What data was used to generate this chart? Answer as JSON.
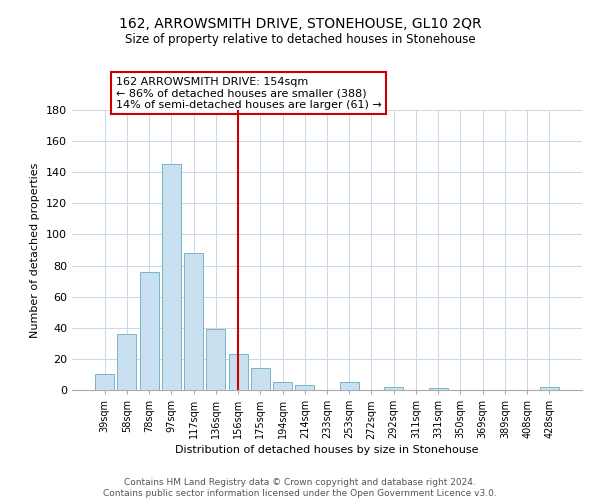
{
  "title": "162, ARROWSMITH DRIVE, STONEHOUSE, GL10 2QR",
  "subtitle": "Size of property relative to detached houses in Stonehouse",
  "xlabel": "Distribution of detached houses by size in Stonehouse",
  "ylabel": "Number of detached properties",
  "bar_labels": [
    "39sqm",
    "58sqm",
    "78sqm",
    "97sqm",
    "117sqm",
    "136sqm",
    "156sqm",
    "175sqm",
    "194sqm",
    "214sqm",
    "233sqm",
    "253sqm",
    "272sqm",
    "292sqm",
    "311sqm",
    "331sqm",
    "350sqm",
    "369sqm",
    "389sqm",
    "408sqm",
    "428sqm"
  ],
  "bar_values": [
    10,
    36,
    76,
    145,
    88,
    39,
    23,
    14,
    5,
    3,
    0,
    5,
    0,
    2,
    0,
    1,
    0,
    0,
    0,
    0,
    2
  ],
  "bar_color": "#c8e0f0",
  "bar_edge_color": "#7ab4cc",
  "vline_x": 6,
  "vline_color": "#cc0000",
  "annotation_title": "162 ARROWSMITH DRIVE: 154sqm",
  "annotation_line1": "← 86% of detached houses are smaller (388)",
  "annotation_line2": "14% of semi-detached houses are larger (61) →",
  "annotation_box_color": "#ffffff",
  "annotation_box_edge": "#cc0000",
  "ylim": [
    0,
    180
  ],
  "yticks": [
    0,
    20,
    40,
    60,
    80,
    100,
    120,
    140,
    160,
    180
  ],
  "footnote1": "Contains HM Land Registry data © Crown copyright and database right 2024.",
  "footnote2": "Contains public sector information licensed under the Open Government Licence v3.0."
}
